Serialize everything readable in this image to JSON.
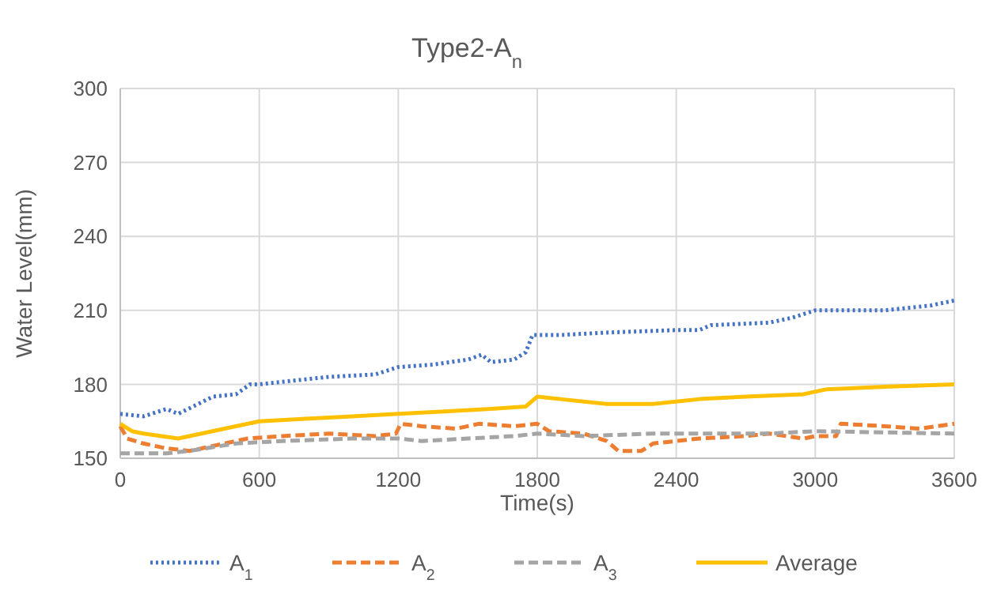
{
  "chart_data": {
    "type": "line",
    "title": "Type2-A$_{n}$",
    "xlabel": "Time(s)",
    "ylabel": "Water Level(mm)",
    "xlim": [
      0,
      3600
    ],
    "xticks": [
      0,
      600,
      1200,
      1800,
      2400,
      3000,
      3600
    ],
    "ylim": [
      150,
      300
    ],
    "yticks": [
      150,
      180,
      210,
      240,
      270,
      300
    ],
    "grid": true,
    "legend": "bottom",
    "series": [
      {
        "name": "A$_{1}$",
        "color": "#4472c4",
        "line_style": "dotted",
        "x": [
          0,
          100,
          200,
          250,
          400,
          500,
          560,
          600,
          700,
          900,
          1100,
          1200,
          1350,
          1500,
          1560,
          1600,
          1700,
          1750,
          1780,
          1900,
          2100,
          2400,
          2500,
          2550,
          2800,
          2900,
          3000,
          3300,
          3500,
          3600
        ],
        "values": [
          168,
          167,
          170,
          168,
          175,
          176,
          180,
          180,
          181,
          183,
          184,
          187,
          188,
          190,
          192,
          189,
          190,
          193,
          200,
          200,
          201,
          202,
          202,
          204,
          205,
          207,
          210,
          210,
          212,
          214
        ]
      },
      {
        "name": "A$_{2}$",
        "color": "#ed7d31",
        "line_style": "dashed",
        "x": [
          0,
          30,
          100,
          200,
          300,
          400,
          550,
          700,
          900,
          1100,
          1190,
          1210,
          1300,
          1450,
          1550,
          1700,
          1800,
          1850,
          2000,
          2100,
          2150,
          2250,
          2300,
          2500,
          2700,
          2800,
          2950,
          3000,
          3090,
          3110,
          3300,
          3450,
          3600
        ],
        "values": [
          163,
          158,
          156,
          154,
          153,
          155,
          158,
          159,
          160,
          159,
          160,
          164,
          163,
          162,
          164,
          163,
          164,
          161,
          160,
          157,
          153,
          153,
          156,
          158,
          159,
          160,
          158,
          159,
          159,
          164,
          163,
          162,
          164
        ]
      },
      {
        "name": "A$_{3}$",
        "color": "#a5a5a5",
        "line_style": "dashed",
        "x": [
          0,
          200,
          300,
          500,
          700,
          1000,
          1200,
          1300,
          1500,
          1700,
          1800,
          2000,
          2300,
          2800,
          3000,
          3600
        ],
        "values": [
          152,
          152,
          153,
          156,
          157,
          158,
          158,
          157,
          158,
          159,
          160,
          159,
          160,
          160,
          161,
          160
        ]
      },
      {
        "name": "Average",
        "color": "#ffc000",
        "line_style": "solid",
        "x": [
          0,
          50,
          100,
          250,
          350,
          450,
          600,
          800,
          1000,
          1200,
          1400,
          1600,
          1750,
          1800,
          1900,
          2100,
          2300,
          2500,
          2700,
          2950,
          3050,
          3300,
          3600
        ],
        "values": [
          164,
          161,
          160,
          158,
          160,
          162,
          165,
          166,
          167,
          168,
          169,
          170,
          171,
          175,
          174,
          172,
          172,
          174,
          175,
          176,
          178,
          179,
          180
        ]
      }
    ]
  }
}
